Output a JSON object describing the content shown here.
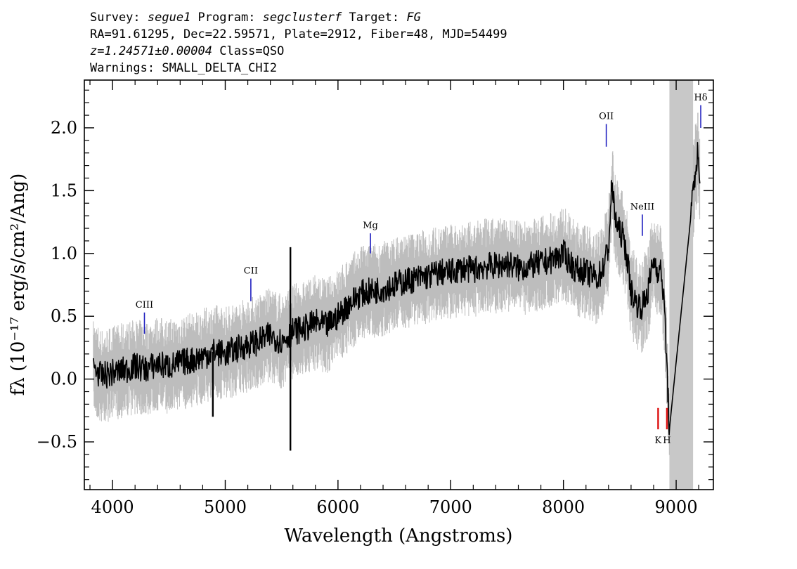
{
  "header": {
    "line1": {
      "survey_label": "Survey: ",
      "survey": "segue1",
      "program_label": " Program: ",
      "program": "segclusterf",
      "target_label": " Target: ",
      "target": "FG"
    },
    "line2": "RA=91.61295, Dec=22.59571, Plate=2912, Fiber=48, MJD=54499",
    "line3": {
      "redshift": "z=1.24571±0.00004",
      "class": " Class=QSO"
    },
    "line4": "Warnings: SMALL_DELTA_CHI2"
  },
  "chart_data": {
    "type": "line",
    "xlabel": "Wavelength (Angstroms)",
    "ylabel": "fλ (10⁻¹⁷ erg/s/cm²/Ang)",
    "xlim": [
      3750,
      9330
    ],
    "ylim": [
      -0.88,
      2.38
    ],
    "x_ticks": [
      4000,
      5000,
      6000,
      7000,
      8000,
      9000
    ],
    "x_tick_labels": [
      "4000",
      "5000",
      "6000",
      "7000",
      "8000",
      "9000"
    ],
    "y_ticks": [
      -0.5,
      0.0,
      0.5,
      1.0,
      1.5,
      2.0
    ],
    "y_tick_labels": [
      "−0.5",
      "0.0",
      "0.5",
      "1.0",
      "1.5",
      "2.0"
    ],
    "grid": false,
    "masked_region": [
      8940,
      9150
    ],
    "colors": {
      "flux": "#000000",
      "error": "#bdbdbd",
      "mask": "#c8c8c8",
      "emission_lines": "#1f1fbf",
      "absorption_lines": "#dd1111"
    },
    "series": [
      {
        "role": "flux",
        "x": [
          3830,
          3900,
          4000,
          4100,
          4200,
          4300,
          4400,
          4500,
          4600,
          4700,
          4800,
          4900,
          5000,
          5100,
          5200,
          5300,
          5400,
          5500,
          5600,
          5700,
          5800,
          5900,
          6000,
          6100,
          6200,
          6300,
          6400,
          6500,
          6600,
          6700,
          6800,
          6900,
          7000,
          7100,
          7200,
          7300,
          7400,
          7500,
          7600,
          7700,
          7800,
          7900,
          8000,
          8100,
          8200,
          8300,
          8350,
          8400,
          8430,
          8450,
          8480,
          8520,
          8560,
          8600,
          8650,
          8700,
          8750,
          8800,
          8830,
          8870,
          8900,
          8940,
          9170,
          9190,
          9210
        ],
        "y": [
          0.1,
          0.02,
          0.05,
          0.07,
          0.1,
          0.08,
          0.12,
          0.1,
          0.13,
          0.15,
          0.18,
          0.22,
          0.2,
          0.24,
          0.27,
          0.3,
          0.35,
          0.3,
          0.38,
          0.4,
          0.45,
          0.42,
          0.5,
          0.6,
          0.68,
          0.7,
          0.72,
          0.75,
          0.78,
          0.8,
          0.82,
          0.85,
          0.85,
          0.88,
          0.87,
          0.9,
          0.9,
          0.92,
          0.88,
          0.9,
          0.92,
          0.95,
          1.0,
          0.88,
          0.85,
          0.8,
          0.88,
          1.05,
          1.55,
          1.35,
          1.2,
          1.15,
          1.0,
          0.7,
          0.6,
          0.58,
          0.7,
          0.95,
          0.88,
          0.85,
          0.5,
          -0.4,
          1.65,
          1.8,
          1.55
        ]
      },
      {
        "role": "error-band",
        "half_width": 0.2
      }
    ],
    "spikes": [
      {
        "x": 4890,
        "y": -0.3
      },
      {
        "x": 5578,
        "y": 1.05
      },
      {
        "x": 5578,
        "y": -0.57
      }
    ],
    "line_markers": [
      {
        "label": "CIII",
        "x": 4283,
        "y_bottom": 0.36,
        "y_top": 0.53,
        "kind": "emission"
      },
      {
        "label": "CII",
        "x": 5227,
        "y_bottom": 0.62,
        "y_top": 0.8,
        "kind": "emission"
      },
      {
        "label": "Mg",
        "x": 6288,
        "y_bottom": 1.0,
        "y_top": 1.16,
        "kind": "emission"
      },
      {
        "label": "OII",
        "x": 8380,
        "y_bottom": 1.85,
        "y_top": 2.03,
        "kind": "emission"
      },
      {
        "label": "NeIII",
        "x": 8700,
        "y_bottom": 1.14,
        "y_top": 1.31,
        "kind": "emission"
      },
      {
        "label": "Hδ",
        "x": 9218,
        "y_bottom": 2.0,
        "y_top": 2.18,
        "kind": "emission"
      },
      {
        "label": "K",
        "x": 8840,
        "y_bottom": -0.4,
        "y_top": -0.23,
        "kind": "absorption"
      },
      {
        "label": "H",
        "x": 8918,
        "y_bottom": -0.4,
        "y_top": -0.23,
        "kind": "absorption"
      }
    ]
  }
}
